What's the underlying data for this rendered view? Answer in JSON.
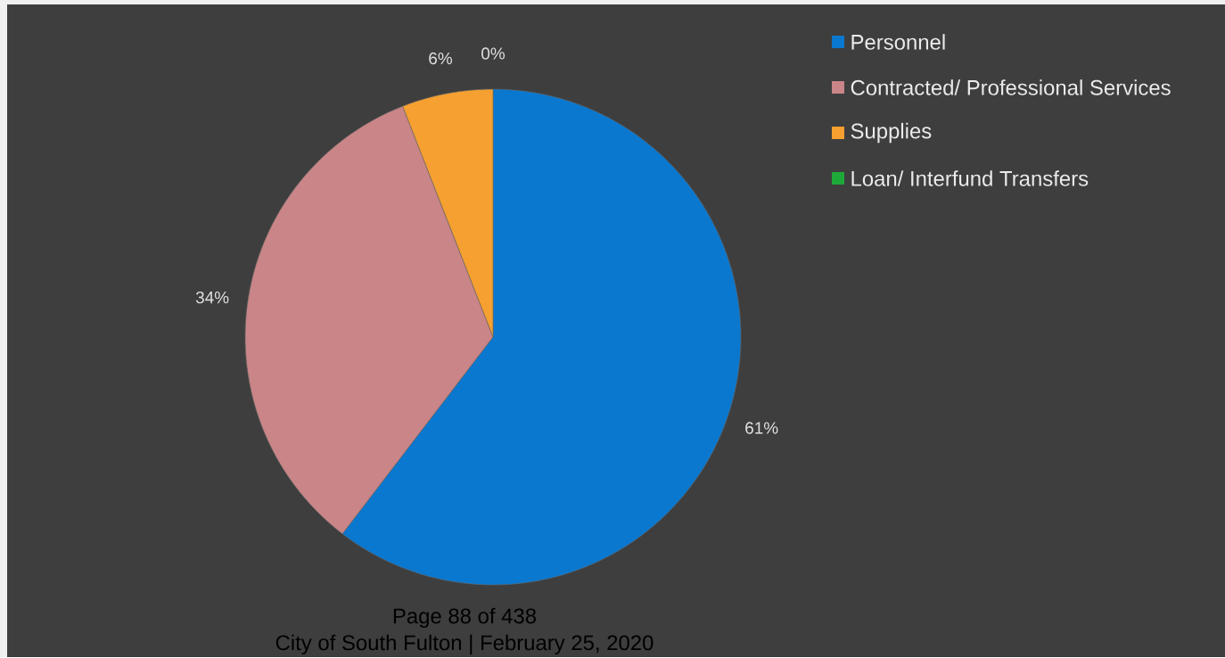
{
  "chart_data": {
    "type": "pie",
    "categories": [
      "Personnel",
      "Contracted/ Professional Services",
      "Supplies",
      "Loan/ Interfund Transfers"
    ],
    "values": [
      61,
      34,
      6,
      0
    ],
    "value_labels": [
      "61%",
      "34%",
      "6%",
      "0%"
    ],
    "colors": [
      "#0a78cf",
      "#c98587",
      "#f5a030",
      "#1fa83a"
    ],
    "legend": "top right",
    "annotations": [
      "Page  88 of 438",
      "City of South Fulton | February 25, 2020"
    ]
  }
}
